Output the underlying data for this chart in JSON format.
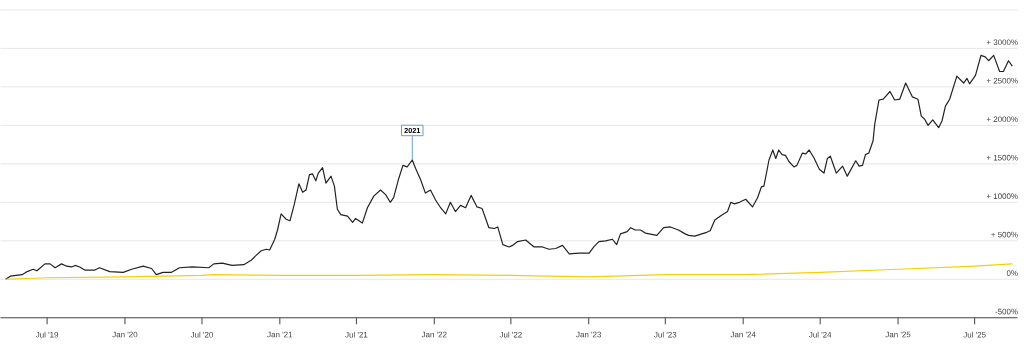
{
  "chart_data": {
    "type": "line",
    "xlim": [
      "2019-03-13",
      "2025-10-10"
    ],
    "ylim": [
      -500,
      3500
    ],
    "xticks": [
      {
        "value": "2019-07-01",
        "label": "Jul '19"
      },
      {
        "value": "2020-01-01",
        "label": "Jan '20"
      },
      {
        "value": "2020-07-01",
        "label": "Jul '20"
      },
      {
        "value": "2021-01-01",
        "label": "Jan '21"
      },
      {
        "value": "2021-07-01",
        "label": "Jul '21"
      },
      {
        "value": "2022-01-01",
        "label": "Jan '22"
      },
      {
        "value": "2022-07-01",
        "label": "Jul '22"
      },
      {
        "value": "2023-01-01",
        "label": "Jan '23"
      },
      {
        "value": "2023-07-01",
        "label": "Jul '23"
      },
      {
        "value": "2024-01-01",
        "label": "Jan '24"
      },
      {
        "value": "2024-07-01",
        "label": "Jul '24"
      },
      {
        "value": "2025-01-01",
        "label": "Jan '25"
      },
      {
        "value": "2025-07-01",
        "label": "Jul '25"
      }
    ],
    "yticks": [
      {
        "value": -500,
        "label": "-500%"
      },
      {
        "value": 0,
        "label": "0%"
      },
      {
        "value": 500,
        "label": "+ 500%"
      },
      {
        "value": 1000,
        "label": "+ 1000%"
      },
      {
        "value": 1500,
        "label": "+ 1500%"
      },
      {
        "value": 2000,
        "label": "+ 2000%"
      },
      {
        "value": 2500,
        "label": "+ 2500%"
      },
      {
        "value": 3000,
        "label": "+ 3000%"
      },
      {
        "value": 3500,
        "label": null
      }
    ],
    "grid": "y",
    "annotations": [
      {
        "text": "2021",
        "x": "2021-11-10",
        "y": 1550
      }
    ],
    "series": [
      {
        "color": "#222222",
        "x": [
          "2019-03-25",
          "2019-04-05",
          "2019-05-03",
          "2019-05-15",
          "2019-05-29",
          "2019-06-07",
          "2019-06-26",
          "2019-07-08",
          "2019-07-20",
          "2019-08-04",
          "2019-08-16",
          "2019-08-28",
          "2019-09-05",
          "2019-09-16",
          "2019-09-28",
          "2019-10-22",
          "2019-11-02",
          "2019-11-26",
          "2019-12-28",
          "2020-01-17",
          "2020-02-13",
          "2020-03-04",
          "2020-03-15",
          "2020-03-31",
          "2020-04-20",
          "2020-05-09",
          "2020-06-08",
          "2020-07-17",
          "2020-07-29",
          "2020-08-18",
          "2020-09-10",
          "2020-10-08",
          "2020-10-26",
          "2020-11-06",
          "2020-11-18",
          "2020-11-30",
          "2020-12-08",
          "2020-12-20",
          "2020-12-27",
          "2021-01-04",
          "2021-01-16",
          "2021-01-25",
          "2021-02-04",
          "2021-02-15",
          "2021-02-24",
          "2021-03-04",
          "2021-03-12",
          "2021-03-19",
          "2021-03-27",
          "2021-04-02",
          "2021-04-12",
          "2021-04-20",
          "2021-05-02",
          "2021-05-10",
          "2021-05-17",
          "2021-05-25",
          "2021-06-10",
          "2021-06-22",
          "2021-06-29",
          "2021-07-15",
          "2021-07-27",
          "2021-08-11",
          "2021-08-27",
          "2021-09-08",
          "2021-09-19",
          "2021-09-27",
          "2021-10-09",
          "2021-10-19",
          "2021-10-29",
          "2021-11-10",
          "2021-11-18",
          "2021-11-30",
          "2021-12-11",
          "2021-12-23",
          "2022-01-04",
          "2022-01-16",
          "2022-01-28",
          "2022-02-08",
          "2022-02-20",
          "2022-03-04",
          "2022-03-16",
          "2022-03-29",
          "2022-04-12",
          "2022-04-24",
          "2022-05-10",
          "2022-05-23",
          "2022-05-31",
          "2022-06-12",
          "2022-06-27",
          "2022-07-05",
          "2022-07-17",
          "2022-08-05",
          "2022-08-25",
          "2022-09-14",
          "2022-09-29",
          "2022-10-15",
          "2022-10-31",
          "2022-11-16",
          "2022-12-09",
          "2023-01-02",
          "2023-01-13",
          "2023-01-25",
          "2023-02-10",
          "2023-02-26",
          "2023-03-08",
          "2023-03-17",
          "2023-04-02",
          "2023-04-10",
          "2023-04-21",
          "2023-05-03",
          "2023-05-15",
          "2023-06-11",
          "2023-06-27",
          "2023-07-13",
          "2023-08-01",
          "2023-08-17",
          "2023-08-25",
          "2023-09-09",
          "2023-09-25",
          "2023-10-07",
          "2023-10-15",
          "2023-10-26",
          "2023-11-10",
          "2023-11-25",
          "2023-12-03",
          "2023-12-11",
          "2023-12-23",
          "2024-01-07",
          "2024-01-23",
          "2024-02-04",
          "2024-02-13",
          "2024-02-19",
          "2024-03-02",
          "2024-03-11",
          "2024-03-18",
          "2024-03-25",
          "2024-04-02",
          "2024-04-10",
          "2024-04-18",
          "2024-04-30",
          "2024-05-07",
          "2024-05-20",
          "2024-05-28",
          "2024-06-05",
          "2024-06-17",
          "2024-06-29",
          "2024-07-10",
          "2024-07-18",
          "2024-07-25",
          "2024-07-30",
          "2024-08-08",
          "2024-08-23",
          "2024-09-03",
          "2024-09-23",
          "2024-10-01",
          "2024-10-09",
          "2024-10-16",
          "2024-10-24",
          "2024-11-03",
          "2024-11-07",
          "2024-11-17",
          "2024-11-27",
          "2024-12-13",
          "2024-12-24",
          "2025-01-05",
          "2025-01-19",
          "2025-02-04",
          "2025-02-17",
          "2025-02-25",
          "2025-03-05",
          "2025-03-13",
          "2025-03-24",
          "2025-04-07",
          "2025-04-15",
          "2025-04-23",
          "2025-05-03",
          "2025-05-20",
          "2025-06-05",
          "2025-06-13",
          "2025-06-19",
          "2025-07-03",
          "2025-07-16",
          "2025-07-26",
          "2025-08-03",
          "2025-08-15",
          "2025-08-29",
          "2025-09-07",
          "2025-09-19",
          "2025-09-28"
        ],
        "values": [
          0,
          40,
          60,
          100,
          130,
          110,
          200,
          200,
          150,
          200,
          170,
          160,
          180,
          160,
          120,
          120,
          150,
          100,
          90,
          130,
          170,
          140,
          60,
          90,
          90,
          150,
          160,
          150,
          200,
          210,
          180,
          190,
          250,
          310,
          370,
          390,
          380,
          520,
          650,
          850,
          780,
          760,
          970,
          1240,
          1130,
          1160,
          1360,
          1370,
          1280,
          1380,
          1450,
          1250,
          1340,
          1210,
          910,
          840,
          820,
          740,
          790,
          730,
          930,
          1080,
          1160,
          1100,
          1000,
          1060,
          1310,
          1480,
          1460,
          1550,
          1440,
          1290,
          1120,
          1160,
          1030,
          930,
          850,
          1000,
          880,
          960,
          930,
          1090,
          940,
          920,
          670,
          660,
          680,
          450,
          420,
          440,
          490,
          510,
          420,
          420,
          390,
          400,
          440,
          330,
          340,
          340,
          420,
          490,
          500,
          520,
          450,
          590,
          620,
          670,
          640,
          640,
          600,
          570,
          670,
          680,
          640,
          590,
          570,
          560,
          590,
          610,
          630,
          770,
          830,
          880,
          1000,
          980,
          1000,
          1040,
          940,
          1060,
          1200,
          1210,
          1550,
          1680,
          1570,
          1680,
          1620,
          1610,
          1530,
          1460,
          1480,
          1640,
          1630,
          1680,
          1570,
          1430,
          1380,
          1570,
          1600,
          1520,
          1380,
          1470,
          1340,
          1540,
          1470,
          1480,
          1620,
          1640,
          1800,
          2020,
          2330,
          2340,
          2440,
          2330,
          2340,
          2550,
          2370,
          2340,
          2120,
          2080,
          2000,
          2070,
          1970,
          2060,
          2250,
          2340,
          2640,
          2550,
          2610,
          2540,
          2650,
          2910,
          2890,
          2840,
          2910,
          2700,
          2700,
          2840,
          2770
        ]
      },
      {
        "color": "#f5d000",
        "x": [
          "2019-03-25",
          "2019-07-01",
          "2020-01-01",
          "2020-07-01",
          "2020-07-29",
          "2021-01-01",
          "2021-07-01",
          "2022-01-01",
          "2022-07-01",
          "2023-01-01",
          "2023-07-01",
          "2024-01-01",
          "2024-07-01",
          "2025-01-01",
          "2025-07-01",
          "2025-09-28"
        ],
        "values": [
          0,
          20,
          30,
          50,
          60,
          50,
          50,
          60,
          50,
          30,
          60,
          60,
          90,
          130,
          170,
          200
        ]
      }
    ]
  }
}
